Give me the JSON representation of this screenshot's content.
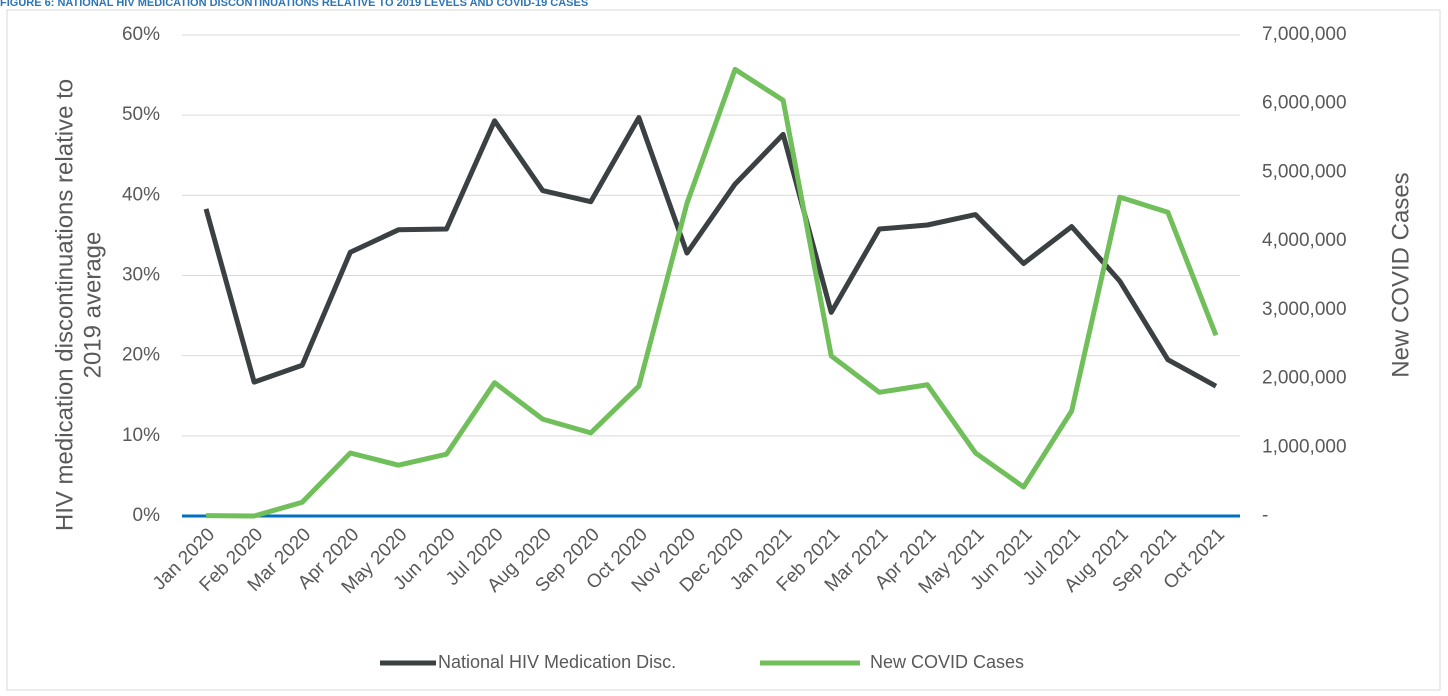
{
  "chart_data": {
    "type": "line",
    "title": "FIGURE 6: NATIONAL HIV MEDICATION DISCONTINUATIONS RELATIVE TO 2019 LEVELS AND COVID-19 CASES",
    "ylabel_lines": [
      "HIV medication discontinuations relative to",
      "2019 average"
    ],
    "y2label": "New COVID Cases",
    "categories": [
      "Jan 2020",
      "Feb 2020",
      "Mar 2020",
      "Apr 2020",
      "May 2020",
      "Jun 2020",
      "Jul 2020",
      "Aug 2020",
      "Sep 2020",
      "Oct 2020",
      "Nov 2020",
      "Dec 2020",
      "Jan 2021",
      "Feb 2021",
      "Mar 2021",
      "Apr 2021",
      "May 2021",
      "Jun 2021",
      "Jul 2021",
      "Aug 2021",
      "Sep 2021",
      "Oct 2021"
    ],
    "series": [
      {
        "name": "National HIV Medication Disc.",
        "color": "#3b4043",
        "axis": "y",
        "values": [
          38.3,
          16.7,
          18.8,
          32.9,
          35.7,
          35.8,
          49.3,
          40.6,
          39.2,
          49.7,
          32.8,
          41.4,
          47.6,
          25.4,
          35.8,
          36.3,
          37.6,
          31.5,
          36.1,
          29.3,
          19.5,
          16.2
        ]
      },
      {
        "name": "New COVID Cases",
        "color": "#70bf5a",
        "axis": "y2",
        "values": [
          5000,
          0,
          200000,
          917000,
          740000,
          900000,
          1940000,
          1410000,
          1210000,
          1890000,
          4550000,
          6500000,
          6050000,
          2330000,
          1800000,
          1910000,
          917000,
          422000,
          1530000,
          4640000,
          4420000,
          2630000
        ]
      }
    ],
    "ylim": [
      0,
      60
    ],
    "yticks": [
      {
        "value": 0,
        "label": "0%"
      },
      {
        "value": 10,
        "label": "10%"
      },
      {
        "value": 20,
        "label": "20%"
      },
      {
        "value": 30,
        "label": "30%"
      },
      {
        "value": 40,
        "label": "40%"
      },
      {
        "value": 50,
        "label": "50%"
      },
      {
        "value": 60,
        "label": "60%"
      }
    ],
    "y2lim": [
      0,
      7000000
    ],
    "y2ticks": [
      {
        "value": 0,
        "label": "-"
      },
      {
        "value": 1000000,
        "label": "1,000,000"
      },
      {
        "value": 2000000,
        "label": "2,000,000"
      },
      {
        "value": 3000000,
        "label": "3,000,000"
      },
      {
        "value": 4000000,
        "label": "4,000,000"
      },
      {
        "value": 5000000,
        "label": "5,000,000"
      },
      {
        "value": 6000000,
        "label": "6,000,000"
      },
      {
        "value": 7000000,
        "label": "7,000,000"
      }
    ],
    "grid": true,
    "baseline_color": "#0070c0",
    "legend": "bottom"
  }
}
